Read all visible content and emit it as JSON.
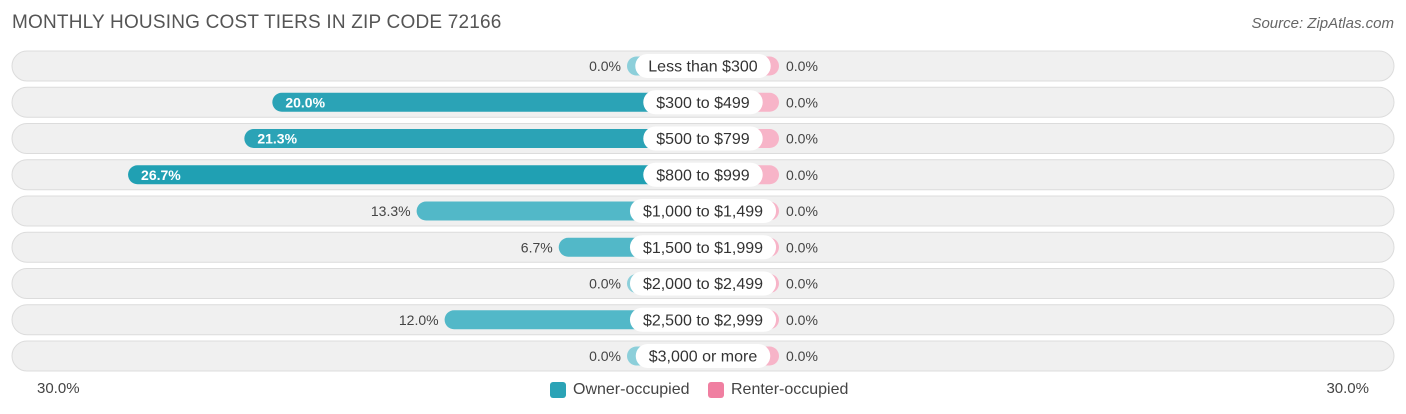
{
  "header": {
    "title": "MONTHLY HOUSING COST TIERS IN ZIP CODE 72166",
    "source": "Source: ZipAtlas.com"
  },
  "axis": {
    "left_label": "30.0%",
    "right_label": "30.0%"
  },
  "legend": {
    "owner_label": "Owner-occupied",
    "renter_label": "Renter-occupied"
  },
  "colors": {
    "owner": "#2ba3b6",
    "owner_light": "#8ccfda",
    "renter": "#f07fa1",
    "renter_light": "#f7b4c8",
    "row_bg": "#f0f0f0",
    "row_border": "#dcdcdc"
  },
  "chart_data": {
    "type": "bar",
    "orientation": "horizontal-diverging",
    "categories": [
      "Less than $300",
      "$300 to $499",
      "$500 to $799",
      "$800 to $999",
      "$1,000 to $1,499",
      "$1,500 to $1,999",
      "$2,000 to $2,499",
      "$2,500 to $2,999",
      "$3,000 or more"
    ],
    "series": [
      {
        "name": "Owner-occupied",
        "values": [
          0.0,
          20.0,
          21.3,
          26.7,
          13.3,
          6.7,
          0.0,
          12.0,
          0.0
        ],
        "labels": [
          "0.0%",
          "20.0%",
          "21.3%",
          "26.7%",
          "13.3%",
          "6.7%",
          "0.0%",
          "12.0%",
          "0.0%"
        ]
      },
      {
        "name": "Renter-occupied",
        "values": [
          0.0,
          0.0,
          0.0,
          0.0,
          0.0,
          0.0,
          0.0,
          0.0,
          0.0
        ],
        "labels": [
          "0.0%",
          "0.0%",
          "0.0%",
          "0.0%",
          "0.0%",
          "0.0%",
          "0.0%",
          "0.0%",
          "0.0%"
        ]
      }
    ],
    "xlim": [
      -30,
      30
    ],
    "legend_position": "bottom-center"
  }
}
